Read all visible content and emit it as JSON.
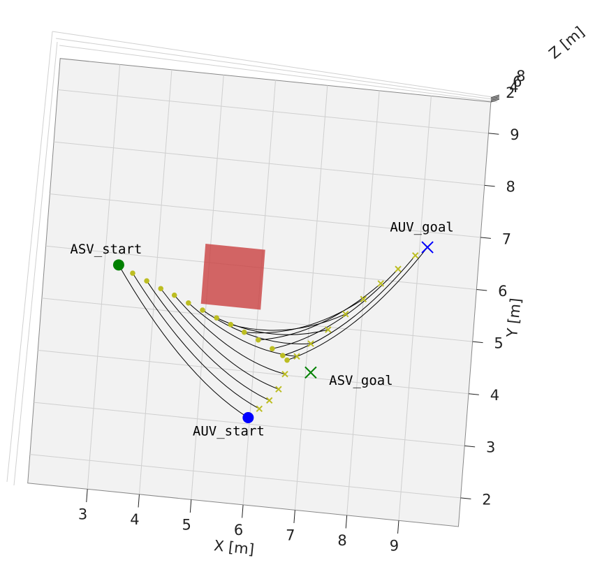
{
  "chart_data": {
    "type": "line3d",
    "xlabel": "X [m]",
    "ylabel": "Y [m]",
    "zlabel": "Z [m]",
    "xlim": [
      1.85,
      10.15
    ],
    "ylim": [
      1.45,
      9.6
    ],
    "xticks": [
      3,
      4,
      5,
      6,
      7,
      8,
      9
    ],
    "yticks": [
      2,
      3,
      4,
      5,
      6,
      7,
      8,
      9
    ],
    "zticks": [
      2,
      4,
      6,
      8
    ],
    "grid": true,
    "obstacle": {
      "color": "#c94040",
      "x": [
        4.9,
        6.05
      ],
      "y": [
        5.2,
        6.35
      ]
    },
    "tether_color": "#000000",
    "paths": [
      {
        "marker": "o",
        "color": "#bcbd22",
        "x": [
          3.27,
          3.55,
          3.83,
          4.11,
          4.38,
          4.66,
          4.94,
          5.22,
          5.5,
          5.77,
          6.05,
          6.33,
          6.54,
          6.63
        ],
        "y": [
          5.78,
          5.65,
          5.53,
          5.41,
          5.31,
          5.19,
          5.08,
          4.96,
          4.86,
          4.74,
          4.62,
          4.48,
          4.37,
          4.29
        ]
      },
      {
        "marker": "x",
        "color": "#bcbd22",
        "x": [
          5.97,
          6.17,
          6.35,
          6.51,
          6.61,
          6.81,
          7.06,
          7.37,
          7.68,
          8.0,
          8.31,
          8.62,
          8.93,
          9.15
        ],
        "y": [
          3.12,
          3.31,
          3.49,
          3.72,
          4.02,
          4.38,
          4.65,
          4.95,
          5.28,
          5.6,
          5.93,
          6.24,
          6.53,
          6.71
        ]
      }
    ],
    "points": [
      {
        "label": "ASV_start",
        "x": 3.27,
        "y": 5.78,
        "marker": "o",
        "color": "#008000"
      },
      {
        "label": "AUV_goal",
        "x": 9.15,
        "y": 6.71,
        "marker": "x",
        "color": "#0000ff"
      },
      {
        "label": "ASV_goal",
        "x": 7.1,
        "y": 4.1,
        "marker": "x",
        "color": "#008000"
      },
      {
        "label": "AUV_start",
        "x": 5.97,
        "y": 3.12,
        "marker": "o",
        "color": "#0000ff"
      }
    ]
  }
}
